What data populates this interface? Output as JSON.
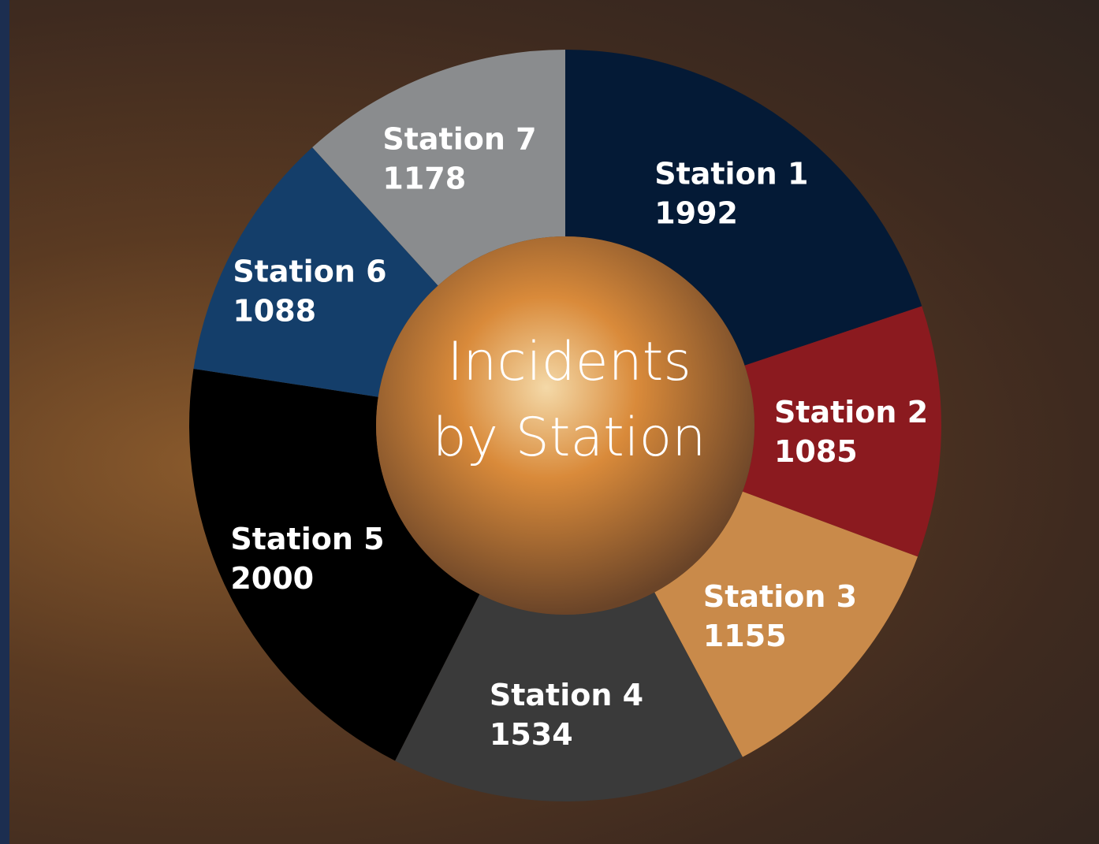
{
  "chart_data": {
    "type": "donut",
    "title": "Incidents by Station",
    "categories": [
      "Station 1",
      "Station 2",
      "Station 3",
      "Station 4",
      "Station 5",
      "Station 6",
      "Station 7"
    ],
    "values": [
      1992,
      1085,
      1155,
      1534,
      2000,
      1088,
      1178
    ],
    "colors": [
      "#041a36",
      "#8b1a1f",
      "#c98a4a",
      "#3a3a3a",
      "#000000",
      "#143e6a",
      "#8a8c8e"
    ]
  }
}
